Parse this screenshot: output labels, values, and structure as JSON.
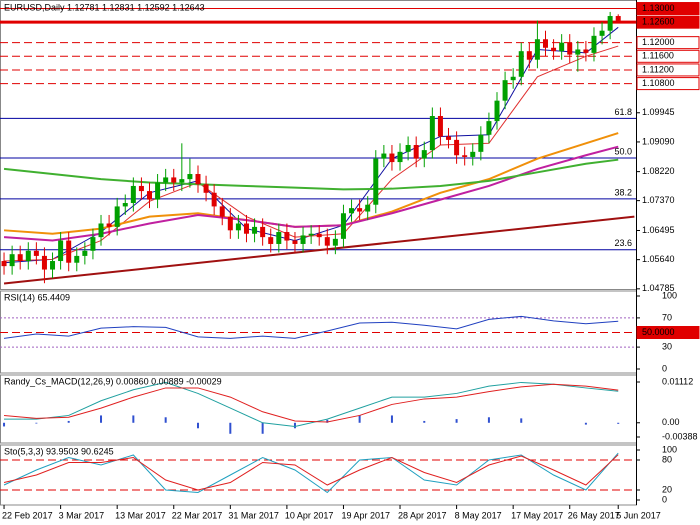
{
  "chart_data": {
    "type": "candlestick",
    "title": "EURUSD,Daily  1.12781 1.12831 1.12592 1.12643",
    "colors": {
      "up": "#00a000",
      "down": "#e00000"
    },
    "open": [
      1.056,
      1.0545,
      1.058,
      1.056,
      1.059,
      1.0575,
      1.0535,
      1.056,
      1.062,
      1.0555,
      1.0575,
      1.059,
      1.063,
      1.067,
      1.066,
      1.072,
      1.073,
      1.078,
      1.0765,
      1.074,
      1.079,
      1.0805,
      1.079,
      1.08,
      1.0815,
      1.0785,
      1.076,
      1.072,
      1.069,
      1.065,
      1.067,
      1.064,
      1.066,
      1.063,
      1.061,
      1.0645,
      1.062,
      1.061,
      1.0635,
      1.064,
      1.063,
      1.0605,
      1.0625,
      1.07,
      1.0715,
      1.0705,
      1.0725,
      1.086,
      1.0875,
      1.085,
      1.088,
      1.09,
      1.086,
      1.0885,
      1.0985,
      1.0925,
      1.0915,
      1.087,
      1.0865,
      1.088,
      1.093,
      1.097,
      1.103,
      1.109,
      1.11,
      1.1175,
      1.115,
      1.121,
      1.1185,
      1.1175,
      1.12,
      1.1165,
      1.118,
      1.117,
      1.122,
      1.1235,
      1.1278
    ],
    "high": [
      1.0585,
      1.0605,
      1.0605,
      1.0615,
      1.0615,
      1.06,
      1.0585,
      1.0645,
      1.0645,
      1.06,
      1.0615,
      1.0655,
      1.0695,
      1.0695,
      1.0745,
      1.0755,
      1.0805,
      1.0805,
      1.079,
      1.0815,
      1.083,
      1.083,
      1.0905,
      1.086,
      1.084,
      1.081,
      1.0785,
      1.0745,
      1.0715,
      1.0695,
      1.0695,
      1.0685,
      1.0685,
      1.0655,
      1.067,
      1.067,
      1.0645,
      1.066,
      1.0665,
      1.0665,
      1.0655,
      1.065,
      1.0725,
      1.074,
      1.074,
      1.075,
      1.0885,
      1.09,
      1.09,
      1.0905,
      1.0925,
      1.0925,
      1.091,
      1.101,
      1.101,
      1.095,
      1.094,
      1.0895,
      1.0905,
      1.0955,
      1.0995,
      1.1055,
      1.1115,
      1.1125,
      1.12,
      1.12,
      1.1265,
      1.1235,
      1.121,
      1.1225,
      1.1225,
      1.1205,
      1.1205,
      1.1245,
      1.126,
      1.129,
      1.1283
    ],
    "low": [
      1.052,
      1.052,
      1.0535,
      1.0535,
      1.055,
      1.0495,
      1.051,
      1.0535,
      1.053,
      1.053,
      1.055,
      1.0565,
      1.0605,
      1.0635,
      1.0635,
      1.0695,
      1.0705,
      1.074,
      1.0715,
      1.0715,
      1.0765,
      1.0765,
      1.0765,
      1.0775,
      1.076,
      1.0735,
      1.0695,
      1.0665,
      1.0625,
      1.0625,
      1.0615,
      1.0615,
      1.0605,
      1.0585,
      1.0585,
      1.0595,
      1.0585,
      1.0585,
      1.061,
      1.0605,
      1.058,
      1.058,
      1.06,
      1.0675,
      1.068,
      1.068,
      1.07,
      1.0835,
      1.0825,
      1.0825,
      1.0855,
      1.0835,
      1.0835,
      1.086,
      1.09,
      1.089,
      1.0845,
      1.084,
      1.084,
      1.0855,
      1.0905,
      1.0945,
      1.1005,
      1.1065,
      1.1075,
      1.1125,
      1.1125,
      1.116,
      1.115,
      1.115,
      1.114,
      1.1115,
      1.1145,
      1.1145,
      1.1195,
      1.121,
      1.1259
    ],
    "close": [
      1.0545,
      1.058,
      1.056,
      1.059,
      1.0575,
      1.0535,
      1.056,
      1.062,
      1.0555,
      1.0575,
      1.059,
      1.063,
      1.067,
      1.066,
      1.072,
      1.073,
      1.078,
      1.0765,
      1.074,
      1.079,
      1.0805,
      1.079,
      1.08,
      1.0815,
      1.0785,
      1.076,
      1.072,
      1.069,
      1.065,
      1.067,
      1.064,
      1.066,
      1.063,
      1.061,
      1.0645,
      1.062,
      1.061,
      1.0635,
      1.064,
      1.063,
      1.0605,
      1.0625,
      1.07,
      1.0715,
      1.0705,
      1.0725,
      1.086,
      1.0875,
      1.085,
      1.088,
      1.09,
      1.086,
      1.0885,
      1.0985,
      1.0925,
      1.0915,
      1.087,
      1.0865,
      1.088,
      1.093,
      1.097,
      1.103,
      1.109,
      1.11,
      1.1175,
      1.115,
      1.121,
      1.1185,
      1.1175,
      1.12,
      1.1165,
      1.118,
      1.117,
      1.122,
      1.1235,
      1.1278,
      1.1264
    ],
    "xlim": [
      -0.5,
      78.2
    ],
    "xticks": [
      {
        "value": 0,
        "label": "22 Feb 2017"
      },
      {
        "value": 7,
        "label": "3 Mar 2017"
      },
      {
        "value": 14,
        "label": "13 Mar 2017"
      },
      {
        "value": 21,
        "label": "22 Mar 2017"
      },
      {
        "value": 28,
        "label": "31 Mar 2017"
      },
      {
        "value": 35,
        "label": "10 Apr 2017"
      },
      {
        "value": 42,
        "label": "19 Apr 2017"
      },
      {
        "value": 49,
        "label": "28 Apr 2017"
      },
      {
        "value": 56,
        "label": "8 May 2017"
      },
      {
        "value": 63,
        "label": "17 May 2017"
      },
      {
        "value": 70,
        "label": "26 May 2017"
      },
      {
        "value": 76,
        "label": "5 Jun 2017"
      }
    ],
    "ylim": [
      1.0478,
      1.1325
    ],
    "yticks": [
      1.09945,
      {
        "value": 1.0909,
        "label": "1.09090"
      },
      {
        "value": 1.0822,
        "label": "1.08220"
      },
      {
        "value": 1.0737,
        "label": "1.07370"
      },
      1.06495,
      {
        "value": 1.0564,
        "label": "1.05640"
      },
      1.04785
    ],
    "levels": [
      {
        "value": 1.13,
        "label": "1.13000",
        "color": "#e00000",
        "style": "solid",
        "label_fill": "#e00000"
      },
      {
        "value": 1.126,
        "label": "1.12600",
        "color": "#e00000",
        "style": "thick",
        "label_fill": "#e00000"
      },
      {
        "value": 1.12,
        "label": "1.12000",
        "color": "#e00000",
        "style": "dashed"
      },
      {
        "value": 1.116,
        "label": "1.11600",
        "color": "#e00000",
        "style": "dashed"
      },
      {
        "value": 1.112,
        "label": "1.11200",
        "color": "#e00000",
        "style": "dashed"
      },
      {
        "value": 1.108,
        "label": "1.10800",
        "color": "#e00000",
        "style": "dashed"
      },
      {
        "value": 1.0978,
        "label": "61.8",
        "color": "#0000a0",
        "style": "solid",
        "label_side": "inside"
      },
      {
        "value": 1.0862,
        "label": "50.0",
        "color": "#0000a0",
        "style": "solid",
        "label_side": "inside"
      },
      {
        "value": 1.0742,
        "label": "38.2",
        "color": "#0000a0",
        "style": "solid",
        "label_side": "inside"
      },
      {
        "value": 1.0593,
        "label": "23.6",
        "color": "#0000a0",
        "style": "solid",
        "label_side": "inside"
      }
    ],
    "trendline": {
      "color": "#a01010",
      "x": [
        0,
        78
      ],
      "values": [
        1.0494,
        1.069
      ]
    },
    "ma_x": [
      0,
      6,
      12,
      18,
      24,
      30,
      36,
      42,
      48,
      54,
      60,
      66,
      72,
      76
    ],
    "lines": [
      {
        "color": "#1010a0",
        "width": 1,
        "values": [
          1.0555,
          1.0565,
          1.0645,
          1.076,
          1.0795,
          1.0655,
          1.062,
          1.0665,
          1.086,
          1.0925,
          1.093,
          1.118,
          1.117,
          1.1245
        ]
      },
      {
        "color": "#e03030",
        "width": 1,
        "values": [
          1.056,
          1.0565,
          1.062,
          1.0735,
          1.079,
          1.069,
          1.063,
          1.064,
          1.08,
          1.09,
          1.0905,
          1.11,
          1.116,
          1.119
        ]
      },
      {
        "color": "#f0900a",
        "width": 2,
        "values": [
          1.065,
          1.064,
          1.0655,
          1.069,
          1.07,
          1.068,
          1.066,
          1.0665,
          1.0705,
          1.076,
          1.08,
          1.086,
          1.0905,
          1.0935
        ]
      },
      {
        "color": "#c020a0",
        "width": 2,
        "values": [
          1.063,
          1.062,
          1.064,
          1.067,
          1.0695,
          1.068,
          1.066,
          1.0665,
          1.07,
          1.074,
          1.078,
          1.083,
          1.087,
          1.0895
        ]
      },
      {
        "color": "#40b030",
        "width": 2,
        "values": [
          1.083,
          1.0815,
          1.08,
          1.079,
          1.0785,
          1.078,
          1.0775,
          1.077,
          1.0772,
          1.078,
          1.0795,
          1.082,
          1.0845,
          1.0857
        ]
      }
    ],
    "indicators": [
      {
        "title": "RSI(14) 65.4409",
        "ylim": [
          0,
          100
        ],
        "yticks": [
          100,
          70,
          30,
          0
        ],
        "levels": [
          {
            "value": 70,
            "color": "#a060c0",
            "style": "dotted"
          },
          {
            "value": 30,
            "color": "#a060c0",
            "style": "dotted"
          },
          {
            "value": 50,
            "label": "50.0000",
            "color": "#e00000",
            "style": "dashed",
            "label_fill": "#e00000"
          }
        ],
        "x": [
          0,
          4,
          8,
          12,
          16,
          20,
          24,
          28,
          32,
          36,
          40,
          44,
          48,
          52,
          56,
          60,
          64,
          68,
          72,
          76
        ],
        "series": [
          {
            "color": "#2040c0",
            "values": [
              42,
              48,
              45,
              56,
              58,
              57,
              44,
              42,
              45,
              42,
              52,
              63,
              64,
              60,
              55,
              68,
              72,
              66,
              62,
              65.4409
            ]
          }
        ]
      },
      {
        "title": "Randy_Cs_MACD(12,26,9) 0.00860 0.00889 -0.00029",
        "ylim": [
          -0.00388,
          0.01112
        ],
        "yticks": [
          0.01112,
          {
            "value": 0,
            "label": "0.00"
          },
          -0.00388
        ],
        "levels": [],
        "x": [
          0,
          4,
          8,
          12,
          16,
          20,
          24,
          28,
          32,
          36,
          40,
          44,
          48,
          52,
          56,
          60,
          64,
          68,
          72,
          76
        ],
        "histogram": {
          "color": "#3050d0",
          "values": [
            -0.001,
            -0.0002,
            0.0005,
            0.002,
            0.002,
            0.0015,
            -0.0015,
            -0.003,
            -0.003,
            -0.0015,
            0.0008,
            0.002,
            0.002,
            0.0005,
            0.001,
            0.0015,
            0.0012,
            0,
            -0.0005,
            -0.00029
          ]
        },
        "series": [
          {
            "color": "#20a0a0",
            "values": [
              0.001,
              0.001,
              0.002,
              0.006,
              0.009,
              0.011,
              0.008,
              0.004,
              0,
              -0.001,
              0.001,
              0.004,
              0.007,
              0.007,
              0.008,
              0.01,
              0.011,
              0.0105,
              0.0095,
              0.0086
            ]
          },
          {
            "color": "#e02020",
            "values": [
              0.002,
              0.0012,
              0.0015,
              0.004,
              0.007,
              0.0095,
              0.0095,
              0.007,
              0.003,
              0.0005,
              0.0002,
              0.002,
              0.005,
              0.0065,
              0.007,
              0.0085,
              0.0098,
              0.0105,
              0.01,
              0.00889
            ]
          }
        ]
      },
      {
        "title": "Sto(5,3,3) 93.9503 90.6245",
        "ylim": [
          0,
          100
        ],
        "yticks": [
          100,
          80,
          20,
          0
        ],
        "levels": [
          {
            "value": 80,
            "color": "#e00000",
            "style": "dashed"
          },
          {
            "value": 20,
            "color": "#e00000",
            "style": "dashed"
          }
        ],
        "x": [
          0,
          4,
          8,
          12,
          16,
          20,
          24,
          28,
          32,
          36,
          40,
          44,
          48,
          52,
          56,
          60,
          64,
          68,
          72,
          76
        ],
        "series": [
          {
            "color": "#20a0c0",
            "values": [
              30,
              60,
              85,
              70,
              90,
              20,
              15,
              50,
              85,
              60,
              15,
              80,
              85,
              40,
              30,
              80,
              90,
              50,
              20,
              93.9503
            ]
          },
          {
            "color": "#e02020",
            "values": [
              35,
              50,
              75,
              75,
              85,
              40,
              20,
              35,
              75,
              70,
              30,
              60,
              85,
              55,
              35,
              70,
              88,
              60,
              30,
              90.6245
            ]
          }
        ]
      }
    ]
  }
}
